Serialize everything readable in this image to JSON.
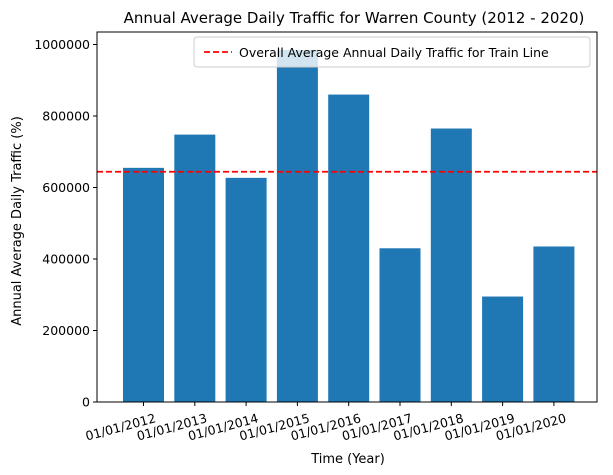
{
  "chart_data": {
    "type": "bar",
    "title": "Annual Average Daily Traffic for Warren County (2012 - 2020)",
    "xlabel": "Time (Year)",
    "ylabel": "Annual Average Daily Traffic (%)",
    "categories": [
      "01/01/2012",
      "01/01/2013",
      "01/01/2014",
      "01/01/2015",
      "01/01/2016",
      "01/01/2017",
      "01/01/2018",
      "01/01/2019",
      "01/01/2020"
    ],
    "values": [
      655000,
      748000,
      627000,
      985000,
      860000,
      430000,
      765000,
      295000,
      435000
    ],
    "ylim": [
      0,
      1035000
    ],
    "yticks": [
      0,
      200000,
      400000,
      600000,
      800000,
      1000000
    ],
    "ytick_labels": [
      "0",
      "200000",
      "400000",
      "600000",
      "800000",
      "1000000"
    ],
    "bar_color": "#1f77b4",
    "reference_line": {
      "label": "Overall Average Annual Daily Traffic for Train Line",
      "value": 644000,
      "color": "#ff0000",
      "style": "dashed"
    },
    "legend_position": "upper right",
    "grid": false
  }
}
